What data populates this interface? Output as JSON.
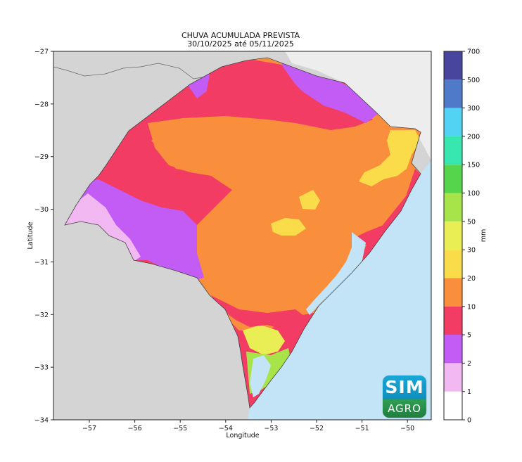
{
  "title_line1": "CHUVA ACUMULADA PREVISTA",
  "title_line2": "30/10/2025 até 05/11/2025",
  "xlabel": "Longitude",
  "ylabel": "Latitude",
  "colorbar_unit": "mm",
  "logo": {
    "top": "SIM",
    "bottom": "AGRO"
  },
  "x_ticks": [
    "−57",
    "−56",
    "−55",
    "−54",
    "−53",
    "−52",
    "−51",
    "−50"
  ],
  "y_ticks": [
    "−27",
    "−28",
    "−29",
    "−30",
    "−31",
    "−32",
    "−33",
    "−34"
  ],
  "colorbar": {
    "labels": [
      "0",
      "1",
      "2",
      "5",
      "10",
      "20",
      "30",
      "50",
      "100",
      "150",
      "200",
      "300",
      "500",
      "700"
    ],
    "colors": [
      "#ffffff",
      "#f2b8f2",
      "#c35cf5",
      "#f23c64",
      "#f98f3c",
      "#fadc4a",
      "#e9ee55",
      "#a7e44a",
      "#55d54c",
      "#38e6b0",
      "#52d3f3",
      "#4f79c9",
      "#47459e"
    ]
  },
  "map_colors": {
    "land_outside": "#d4d4d4",
    "ocean": "#c2e4f6",
    "lagoon": "#c2e4f6",
    "light_pink": "#f2b8f2",
    "purple": "#c35cf5",
    "pink": "#f23c64",
    "orange": "#f98f3c",
    "yellow": "#fadc4a",
    "light_yellow": "#e9ee55",
    "green_yellow": "#a7e44a"
  }
}
